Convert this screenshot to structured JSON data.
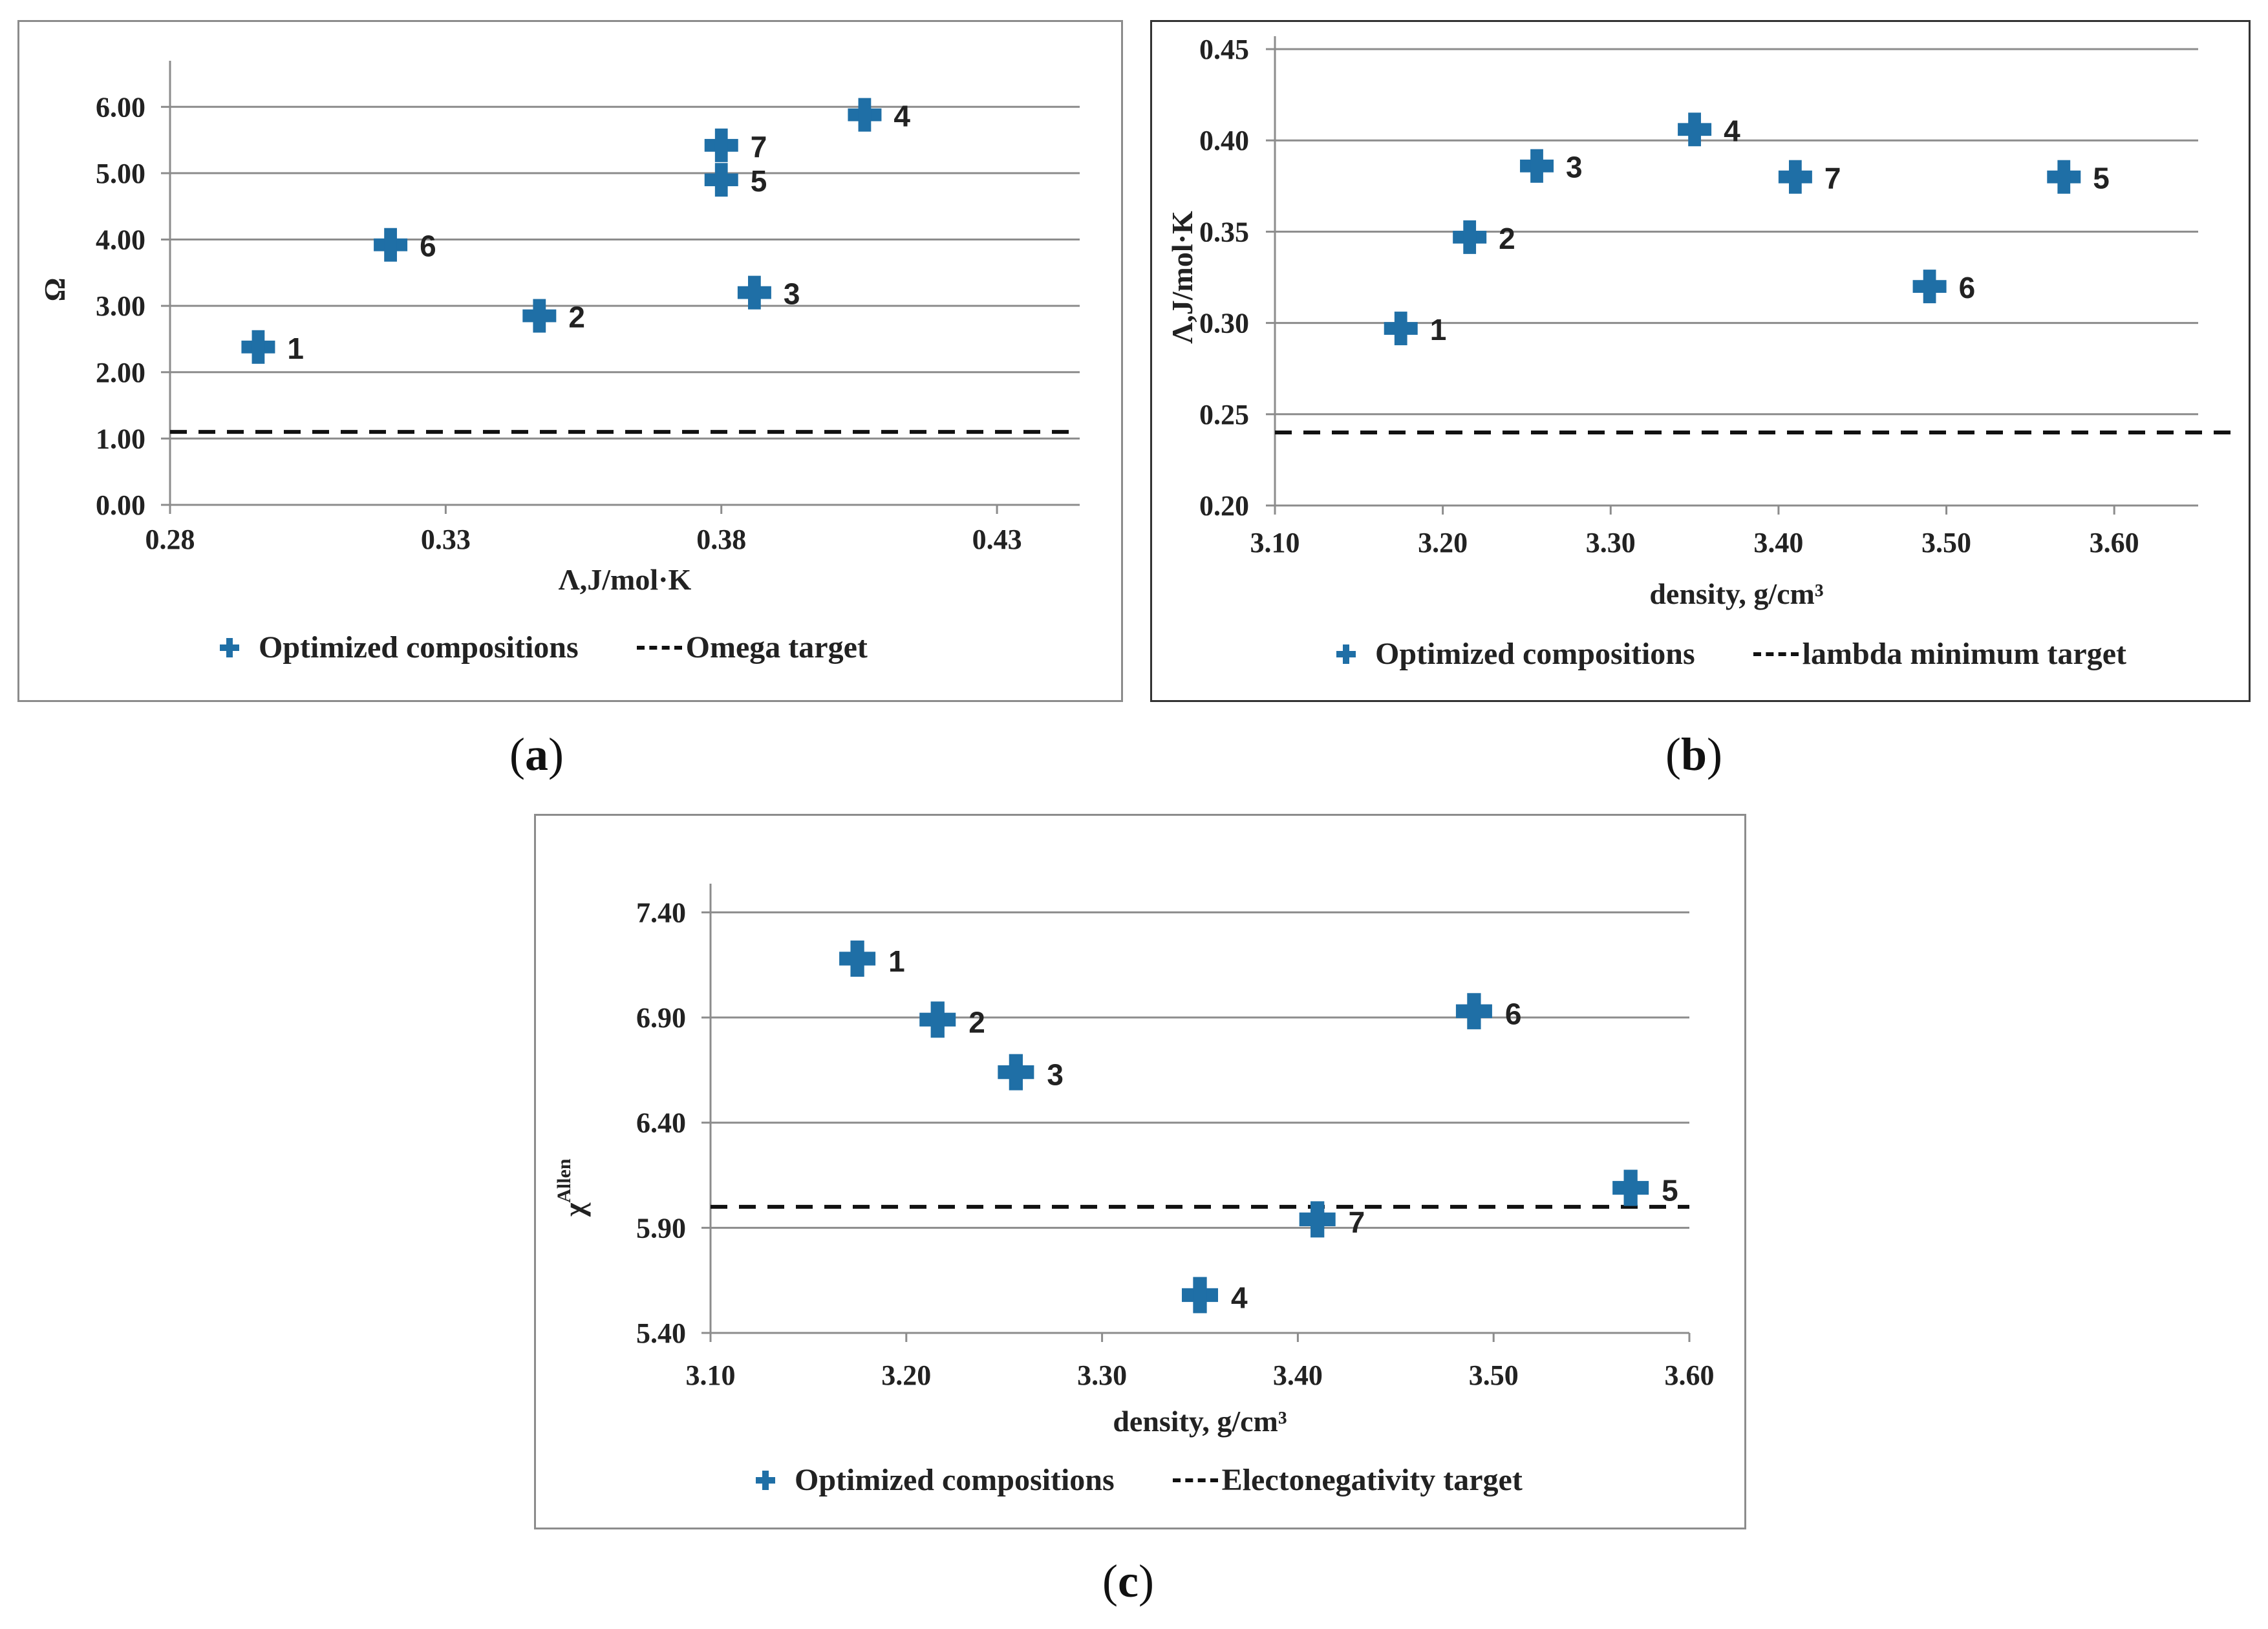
{
  "chart_data": [
    {
      "id": "a",
      "type": "scatter",
      "caption": "a",
      "xlabel": "Λ,J/mol·K",
      "ylabel": "Ω",
      "xlim": [
        0.28,
        0.445
      ],
      "ylim": [
        0,
        6.5
      ],
      "xticks": [
        "0.28",
        "0.33",
        "0.38",
        "0.43"
      ],
      "xtick_values": [
        0.28,
        0.33,
        0.38,
        0.43
      ],
      "yticks": [
        "0.00",
        "1.00",
        "2.00",
        "3.00",
        "4.00",
        "5.00",
        "6.00"
      ],
      "ytick_values": [
        0,
        1,
        2,
        3,
        4,
        5,
        6
      ],
      "grid": true,
      "legend_position": "bottom",
      "series": [
        {
          "name": "Optimized compositions",
          "color": "#1f6fa6",
          "marker": "plus",
          "points": [
            {
              "label": "1",
              "x": 0.296,
              "y": 2.38
            },
            {
              "label": "2",
              "x": 0.347,
              "y": 2.85
            },
            {
              "label": "3",
              "x": 0.386,
              "y": 3.2
            },
            {
              "label": "4",
              "x": 0.406,
              "y": 5.88
            },
            {
              "label": "5",
              "x": 0.38,
              "y": 4.9
            },
            {
              "label": "6",
              "x": 0.32,
              "y": 3.92
            },
            {
              "label": "7",
              "x": 0.38,
              "y": 5.42
            }
          ]
        }
      ],
      "target": {
        "name": "Omega target",
        "y": 1.1,
        "color": "#111111"
      }
    },
    {
      "id": "b",
      "type": "scatter",
      "caption": "b",
      "xlabel": "density, g/cm³",
      "ylabel": "Λ,J/mol·K",
      "xlim": [
        3.1,
        3.65
      ],
      "ylim": [
        0.2,
        0.45
      ],
      "xticks": [
        "3.10",
        "3.20",
        "3.30",
        "3.40",
        "3.50",
        "3.60"
      ],
      "xtick_values": [
        3.1,
        3.2,
        3.3,
        3.4,
        3.5,
        3.6
      ],
      "yticks": [
        "0.20",
        "0.25",
        "0.30",
        "0.35",
        "0.40",
        "0.45"
      ],
      "ytick_values": [
        0.2,
        0.25,
        0.3,
        0.35,
        0.4,
        0.45
      ],
      "grid": true,
      "legend_position": "bottom",
      "series": [
        {
          "name": "Optimized compositions",
          "color": "#1f6fa6",
          "marker": "plus",
          "points": [
            {
              "label": "1",
              "x": 3.175,
              "y": 0.297
            },
            {
              "label": "2",
              "x": 3.216,
              "y": 0.347
            },
            {
              "label": "3",
              "x": 3.256,
              "y": 0.386
            },
            {
              "label": "4",
              "x": 3.35,
              "y": 0.406
            },
            {
              "label": "7",
              "x": 3.41,
              "y": 0.38
            },
            {
              "label": "6",
              "x": 3.49,
              "y": 0.32
            },
            {
              "label": "5",
              "x": 3.57,
              "y": 0.38
            }
          ]
        }
      ],
      "target": {
        "name": "lambda minimum target",
        "y": 0.24,
        "color": "#111111"
      }
    },
    {
      "id": "c",
      "type": "scatter",
      "caption": "c",
      "xlabel": "density, g/cm³",
      "ylabel_main": "χ",
      "ylabel_sup": "Allen",
      "xlim": [
        3.1,
        3.6
      ],
      "ylim": [
        5.4,
        7.475
      ],
      "xticks": [
        "3.10",
        "3.20",
        "3.30",
        "3.40",
        "3.50",
        "3.60"
      ],
      "xtick_values": [
        3.1,
        3.2,
        3.3,
        3.4,
        3.5,
        3.6
      ],
      "yticks": [
        "5.40",
        "5.90",
        "6.40",
        "6.90",
        "7.40"
      ],
      "ytick_values": [
        5.4,
        5.9,
        6.4,
        6.9,
        7.4
      ],
      "grid": true,
      "legend_position": "bottom",
      "series": [
        {
          "name": "Optimized compositions",
          "color": "#1f6fa6",
          "marker": "plus",
          "points": [
            {
              "label": "1",
              "x": 3.175,
              "y": 7.18
            },
            {
              "label": "2",
              "x": 3.216,
              "y": 6.89
            },
            {
              "label": "3",
              "x": 3.256,
              "y": 6.64
            },
            {
              "label": "6",
              "x": 3.49,
              "y": 6.93
            },
            {
              "label": "5",
              "x": 3.57,
              "y": 6.09
            },
            {
              "label": "7",
              "x": 3.41,
              "y": 5.94
            },
            {
              "label": "4",
              "x": 3.35,
              "y": 5.58
            }
          ]
        }
      ],
      "target": {
        "name": "Electonegativity target",
        "y": 6.0,
        "color": "#111111"
      }
    }
  ]
}
